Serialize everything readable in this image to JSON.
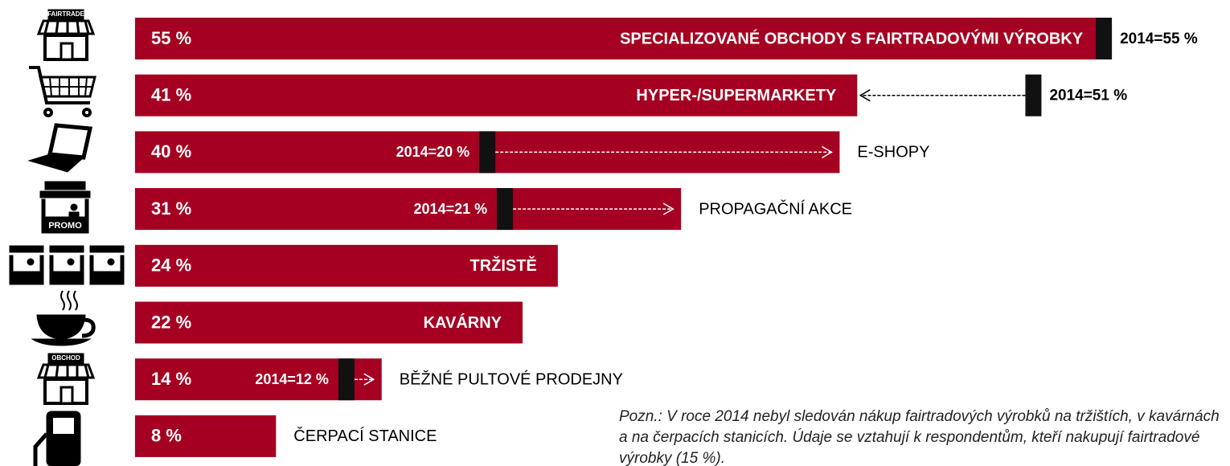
{
  "chart_data": {
    "type": "bar",
    "orientation": "horizontal",
    "categories": [
      "SPECIALIZOVANÉ OBCHODY S FAIRTRADOVÝMI VÝROBKY",
      "HYPER-/SUPERMARKETY",
      "E-SHOPY",
      "PROPAGAČNÍ AKCE",
      "TRŽISTĚ",
      "KAVÁRNY",
      "BĚŽNÉ PULTOVÉ PRODEJNY",
      "ČERPACÍ STANICE"
    ],
    "values": [
      55,
      41,
      40,
      31,
      24,
      22,
      14,
      8
    ],
    "value_labels": [
      "55 %",
      "41 %",
      "40 %",
      "31 %",
      "24 %",
      "22 %",
      "14 %",
      "8 %"
    ],
    "prior_values": [
      55,
      51,
      20,
      21,
      null,
      null,
      12,
      null
    ],
    "prior_labels": [
      "2014=55 %",
      "2014=51 %",
      "2014=20 %",
      "2014=21 %",
      null,
      null,
      "2014=12 %",
      null
    ],
    "icon_labels": [
      "FAIRTRADE",
      null,
      null,
      "PROMO",
      null,
      null,
      "OBCHOD",
      null
    ],
    "color": "#a50021",
    "marker_color": "#111111",
    "xlim": [
      0,
      56
    ],
    "note": "Pozn.: V roce 2014 nebyl sledován nákup fairtradových výrobků na tržištích, v kavárnách a na čerpacích stanicích. Údaje se vztahují k respondentům, kteří nakupují fairtradové výrobky (15 %)."
  }
}
